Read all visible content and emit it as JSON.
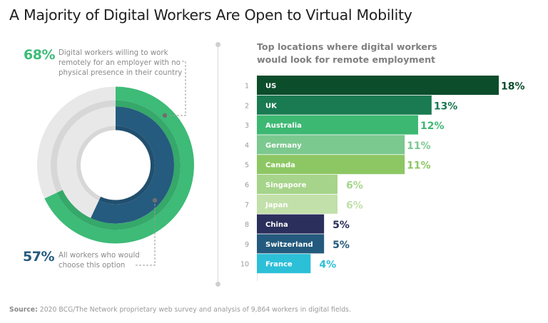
{
  "title": "A Majority of Digital Workers Are Open to Virtual Mobility",
  "donut": {
    "outer": {
      "value_label": "68%",
      "value": 68,
      "description": "Digital workers willing to work remotely for an employer with no physical presence in their country",
      "lines": [
        "Digital workers willing to work",
        "remotely for an employer with no",
        "physical presence in their country"
      ],
      "color": "#3dbb77"
    },
    "inner": {
      "value_label": "57%",
      "value": 57,
      "description": "All workers who would choose this option",
      "lines": [
        "All workers who would",
        "choose this option"
      ],
      "color": "#255b7e"
    }
  },
  "bar_chart_title_lines": [
    "Top locations where digital workers",
    "would look for remote employment"
  ],
  "footer": {
    "source_label": "Source:",
    "source_text": " 2020 BCG/The Network proprietary web survey and analysis of 9,864 workers in digital fields."
  },
  "chart_data": [
    {
      "type": "pie",
      "title": "",
      "series": [
        {
          "name": "Digital workers willing to work remotely for an employer with no physical presence in their country",
          "value": 68,
          "remainder": 32
        },
        {
          "name": "All workers who would choose this option",
          "value": 57,
          "remainder": 43
        }
      ],
      "unit": "%"
    },
    {
      "type": "bar",
      "orientation": "horizontal",
      "title": "Top locations where digital workers would look for remote employment",
      "ranks": [
        1,
        2,
        3,
        4,
        5,
        6,
        7,
        8,
        9,
        10
      ],
      "categories": [
        "US",
        "UK",
        "Australia",
        "Germany",
        "Canada",
        "Singapore",
        "Japan",
        "China",
        "Switzerland",
        "France"
      ],
      "values": [
        18,
        13,
        12,
        11,
        11,
        6,
        6,
        5,
        5,
        4
      ],
      "value_labels": [
        "18%",
        "13%",
        "12%",
        "11%",
        "11%",
        "6%",
        "6%",
        "5%",
        "5%",
        "4%"
      ],
      "colors": [
        "#0c4d2c",
        "#1a7a52",
        "#3db873",
        "#7bc98f",
        "#8dc763",
        "#a6d48a",
        "#c2e0aa",
        "#2b2f5c",
        "#245a7d",
        "#2cbfd8"
      ],
      "label_colors": [
        "#0c4d2c",
        "#1a7a52",
        "#3db873",
        "#7bc98f",
        "#8dc763",
        "#a6d48a",
        "#c2e0aa",
        "#2b2f5c",
        "#245a7d",
        "#2cbfd8"
      ],
      "xlabel": "",
      "ylabel": "",
      "xlim": [
        0,
        18
      ]
    }
  ]
}
